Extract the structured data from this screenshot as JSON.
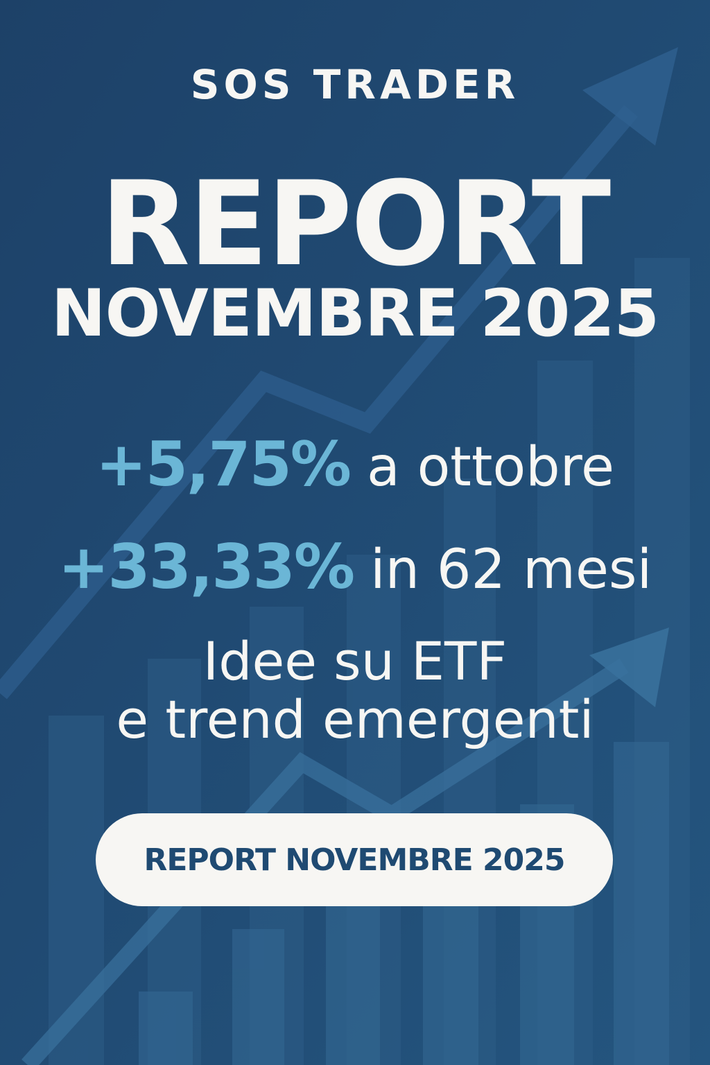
{
  "brand": "SOS TRADER",
  "title": "REPORT",
  "subtitle": "NOVEMBRE 2025",
  "stats": [
    {
      "value": "+5,75%",
      "label": "a ottobre"
    },
    {
      "value": "+33,33%",
      "label": "in 62 mesi"
    }
  ],
  "tagline": [
    "Idee su ETF",
    "e trend emergenti"
  ],
  "cta_label": "REPORT NOVEMBRE 2025",
  "colors": {
    "background": "#1f4a72",
    "accent": "#6bb6d6",
    "text": "#f7f6f3",
    "button_text": "#1f4a72"
  },
  "icons": [
    "trend-arrow-up-icon",
    "bar-chart-background"
  ]
}
